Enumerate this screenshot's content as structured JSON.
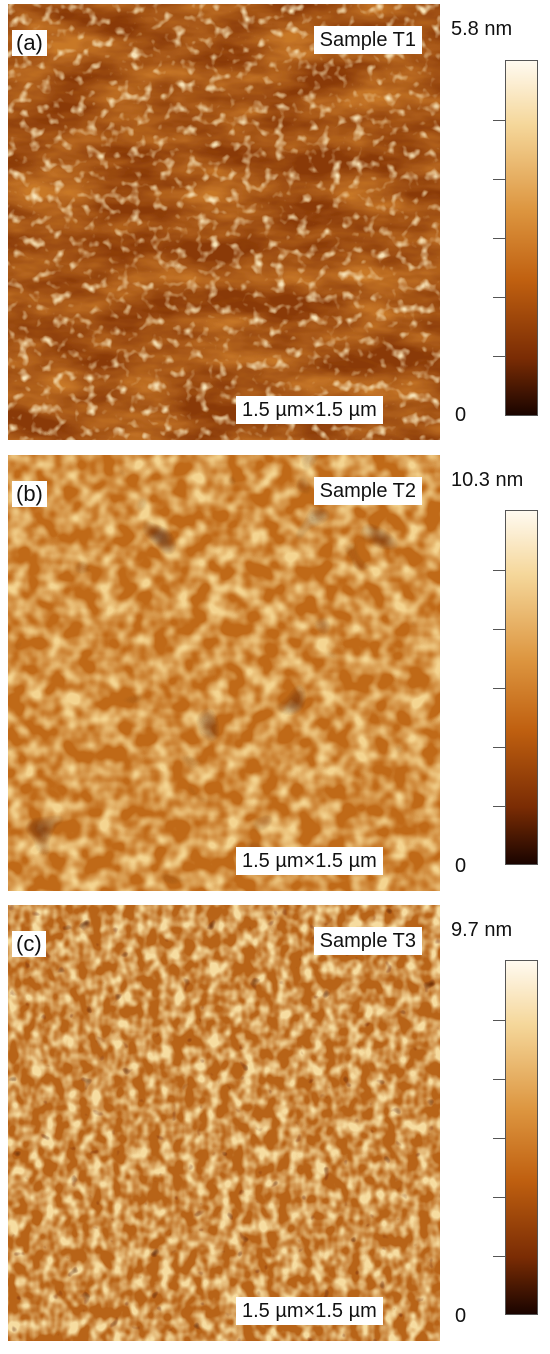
{
  "panels": [
    {
      "letter": "(a)",
      "sample": "Sample T1",
      "scale": "1.5 µm×1.5 µm",
      "cmax": "5.8 nm",
      "cmin": "0",
      "texture": "elongated-grains"
    },
    {
      "letter": "(b)",
      "sample": "Sample T2",
      "scale": "1.5 µm×1.5 µm",
      "cmax": "10.3 nm",
      "cmin": "0",
      "texture": "dense-round-grains"
    },
    {
      "letter": "(c)",
      "sample": "Sample T3",
      "scale": "1.5 µm×1.5 µm",
      "cmax": "9.7 nm",
      "cmin": "0",
      "texture": "fine-grains"
    }
  ],
  "colormap": [
    "#1a0400",
    "#7a2c04",
    "#c06010",
    "#dd9640",
    "#f5d79a",
    "#fffaf0"
  ]
}
